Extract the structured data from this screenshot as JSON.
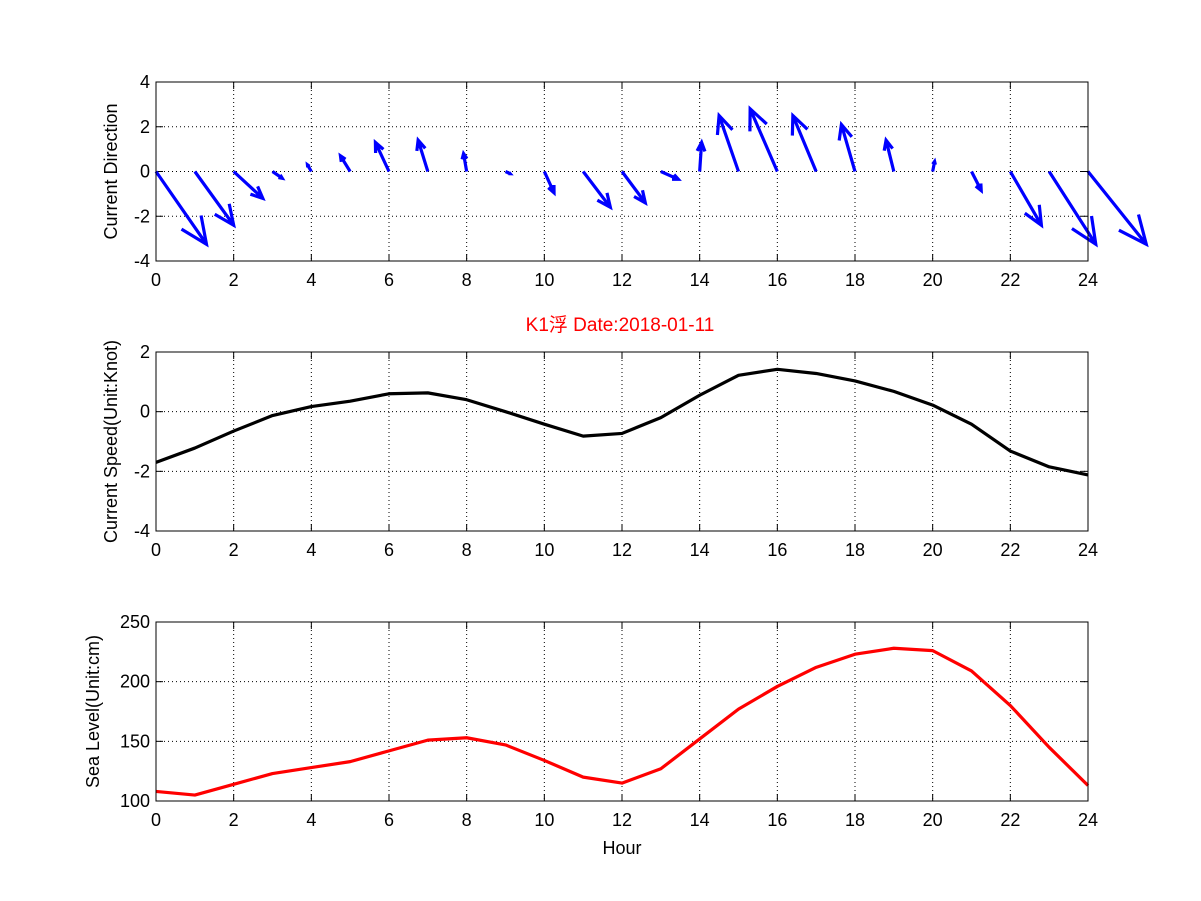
{
  "title": "K1浮    Date:2018-01-11",
  "colors": {
    "title": "#ff0000",
    "direction": "#0000ff",
    "speed": "#000000",
    "sea_level": "#ff0000",
    "grid": "#000000"
  },
  "chart_data": [
    {
      "type": "quiver",
      "title": "",
      "xlabel": "",
      "ylabel": "Current Direction",
      "xlim": [
        0,
        24
      ],
      "ylim": [
        -4,
        4
      ],
      "x_ticks": [
        "0",
        "2",
        "4",
        "6",
        "8",
        "10",
        "12",
        "14",
        "16",
        "18",
        "20",
        "22",
        "24"
      ],
      "y_ticks": [
        "-4",
        "-2",
        "0",
        "2",
        "4"
      ],
      "grid": true,
      "x": [
        0,
        1,
        2,
        3,
        4,
        5,
        6,
        7,
        8,
        9,
        10,
        11,
        12,
        13,
        14,
        15,
        16,
        17,
        18,
        19,
        20,
        21,
        22,
        23,
        24
      ],
      "u": [
        1.3,
        1.0,
        0.75,
        0.25,
        -0.1,
        -0.25,
        -0.35,
        -0.25,
        -0.08,
        0.12,
        0.25,
        0.7,
        0.6,
        0.45,
        0.05,
        -0.5,
        -0.7,
        -0.6,
        -0.35,
        -0.2,
        0.05,
        0.25,
        0.8,
        1.2,
        1.5
      ],
      "v": [
        -3.25,
        -2.4,
        -1.2,
        -0.3,
        0.3,
        0.7,
        1.3,
        1.4,
        0.8,
        -0.1,
        -0.95,
        -1.6,
        -1.4,
        -0.35,
        1.3,
        2.5,
        2.8,
        2.5,
        2.1,
        1.4,
        0.45,
        -0.85,
        -2.4,
        -3.25,
        -3.25
      ]
    },
    {
      "type": "line",
      "title": "",
      "xlabel": "",
      "ylabel": "Current Speed(Unit:Knot)",
      "xlim": [
        0,
        24
      ],
      "ylim": [
        -4,
        2
      ],
      "x_ticks": [
        "0",
        "2",
        "4",
        "6",
        "8",
        "10",
        "12",
        "14",
        "16",
        "18",
        "20",
        "22",
        "24"
      ],
      "y_ticks": [
        "-4",
        "-2",
        "0",
        "2"
      ],
      "grid": true,
      "x": [
        0,
        1,
        2,
        3,
        4,
        5,
        6,
        7,
        8,
        9,
        10,
        11,
        12,
        13,
        14,
        15,
        16,
        17,
        18,
        19,
        20,
        21,
        22,
        23,
        24
      ],
      "series": [
        {
          "values": [
            -1.7,
            -1.22,
            -0.65,
            -0.13,
            0.17,
            0.35,
            0.6,
            0.63,
            0.4,
            0.0,
            -0.42,
            -0.82,
            -0.73,
            -0.2,
            0.55,
            1.22,
            1.42,
            1.28,
            1.03,
            0.68,
            0.22,
            -0.42,
            -1.32,
            -1.85,
            -2.12
          ]
        }
      ]
    },
    {
      "type": "line",
      "title": "",
      "xlabel": "Hour",
      "ylabel": "Sea Level(Unit:cm)",
      "xlim": [
        0,
        24
      ],
      "ylim": [
        100,
        250
      ],
      "x_ticks": [
        "0",
        "2",
        "4",
        "6",
        "8",
        "10",
        "12",
        "14",
        "16",
        "18",
        "20",
        "22",
        "24"
      ],
      "y_ticks": [
        "100",
        "150",
        "200",
        "250"
      ],
      "grid": true,
      "x": [
        0,
        1,
        2,
        3,
        4,
        5,
        6,
        7,
        8,
        9,
        10,
        11,
        12,
        13,
        14,
        15,
        16,
        17,
        18,
        19,
        20,
        21,
        22,
        23,
        24
      ],
      "series": [
        {
          "values": [
            108,
            105,
            114,
            123,
            128,
            133,
            142,
            151,
            153,
            147,
            134,
            120,
            115,
            127,
            152,
            177,
            196,
            212,
            223,
            228,
            226,
            209,
            180,
            145,
            113
          ]
        }
      ]
    }
  ]
}
